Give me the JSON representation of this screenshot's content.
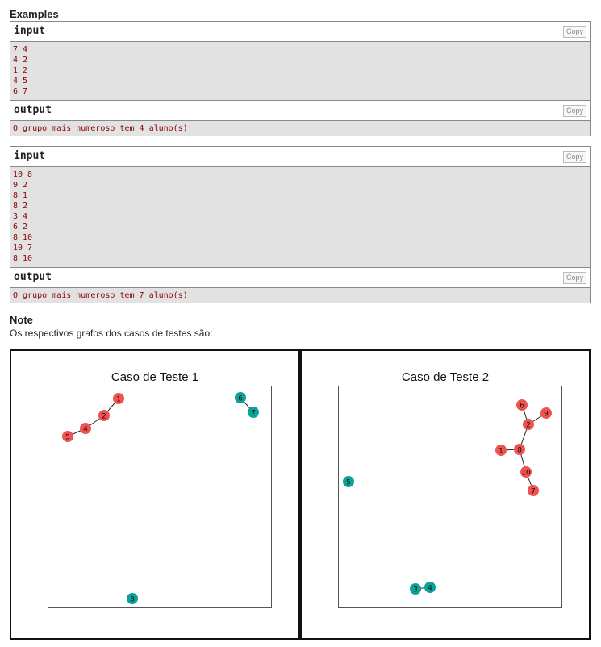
{
  "examples_title": "Examples",
  "copy_label": "Copy",
  "samples": [
    {
      "input_label": "input",
      "input_lines": [
        "7 4",
        "4 2",
        "1 2",
        "4 5",
        "6 7"
      ],
      "output_label": "output",
      "output_text": "O grupo mais numeroso tem 4 aluno(s)"
    },
    {
      "input_label": "input",
      "input_lines": [
        "10 8",
        "9 2",
        "8 1",
        "8 2",
        "3 4",
        "6 2",
        "8 10",
        "10 7",
        "8 10"
      ],
      "output_label": "output",
      "output_text": "O grupo mais numeroso tem 7 aluno(s)"
    }
  ],
  "note_title": "Note",
  "note_text": "Os respectivos grafos dos casos de testes são:",
  "colors": {
    "big_group": "#ef5350",
    "other_group": "#0aa39a",
    "input_text": "#8b0000",
    "sample_bg": "#e2e2e2"
  },
  "graphs": [
    {
      "title": "Caso de Teste 1",
      "nodes": [
        {
          "id": "1",
          "group": "big"
        },
        {
          "id": "2",
          "group": "big"
        },
        {
          "id": "4",
          "group": "big"
        },
        {
          "id": "5",
          "group": "big"
        },
        {
          "id": "6",
          "group": "other"
        },
        {
          "id": "7",
          "group": "other"
        },
        {
          "id": "3",
          "group": "other"
        }
      ],
      "edges": [
        [
          "1",
          "2"
        ],
        [
          "2",
          "4"
        ],
        [
          "4",
          "5"
        ],
        [
          "6",
          "7"
        ]
      ]
    },
    {
      "title": "Caso de Teste 2",
      "nodes": [
        {
          "id": "6",
          "group": "big"
        },
        {
          "id": "9",
          "group": "big"
        },
        {
          "id": "2",
          "group": "big"
        },
        {
          "id": "1",
          "group": "big"
        },
        {
          "id": "8",
          "group": "big"
        },
        {
          "id": "10",
          "group": "big"
        },
        {
          "id": "7",
          "group": "big"
        },
        {
          "id": "5",
          "group": "other"
        },
        {
          "id": "3",
          "group": "other"
        },
        {
          "id": "4",
          "group": "other"
        }
      ],
      "edges": [
        [
          "6",
          "2"
        ],
        [
          "9",
          "2"
        ],
        [
          "2",
          "8"
        ],
        [
          "1",
          "8"
        ],
        [
          "8",
          "10"
        ],
        [
          "10",
          "7"
        ],
        [
          "3",
          "4"
        ]
      ]
    }
  ]
}
